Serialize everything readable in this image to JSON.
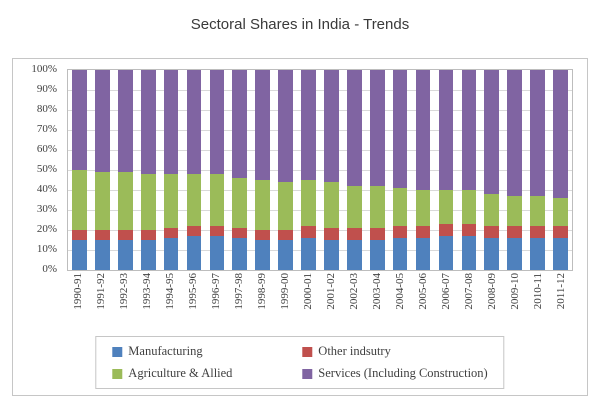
{
  "chart_data": {
    "type": "bar",
    "stacked": true,
    "stacked_100_percent": true,
    "title": "Sectoral Shares in India - Trends",
    "xlabel": "",
    "ylabel": "",
    "ylim": [
      0,
      100
    ],
    "ytick_step": 10,
    "ytick_labels_bottom_to_top": [
      "0%",
      "10%",
      "20%",
      "30%",
      "40%",
      "50%",
      "60%",
      "70%",
      "80%",
      "90%",
      "100%"
    ],
    "grid": true,
    "legend_position": "bottom",
    "categories": [
      "1990-91",
      "1991-92",
      "1992-93",
      "1993-94",
      "1994-95",
      "1995-96",
      "1996-97",
      "1997-98",
      "1998-99",
      "1999-00",
      "2000-01",
      "2001-02",
      "2002-03",
      "2003-04",
      "2004-05",
      "2005-06",
      "2006-07",
      "2007-08",
      "2008-09",
      "2009-10",
      "2010-11",
      "2011-12"
    ],
    "series": [
      {
        "name": "Manufacturing",
        "color": "#4F81BD",
        "values": [
          15,
          15,
          15,
          15,
          16,
          17,
          17,
          16,
          15,
          15,
          16,
          15,
          15,
          15,
          16,
          16,
          17,
          17,
          16,
          16,
          16,
          16
        ]
      },
      {
        "name": "Other indsutry",
        "color": "#C0504D",
        "values": [
          5,
          5,
          5,
          5,
          5,
          5,
          5,
          5,
          5,
          5,
          6,
          6,
          6,
          6,
          6,
          6,
          6,
          6,
          6,
          6,
          6,
          6
        ]
      },
      {
        "name": "Agriculture & Allied",
        "color": "#9BBB59",
        "values": [
          30,
          29,
          29,
          28,
          27,
          26,
          26,
          25,
          25,
          24,
          23,
          23,
          21,
          21,
          19,
          18,
          17,
          17,
          16,
          15,
          15,
          14
        ]
      },
      {
        "name": "Services (Including Construction)",
        "color": "#8064A2",
        "values": [
          50,
          51,
          51,
          52,
          52,
          52,
          52,
          54,
          55,
          56,
          55,
          56,
          58,
          58,
          59,
          60,
          60,
          60,
          62,
          63,
          63,
          64
        ]
      }
    ]
  }
}
